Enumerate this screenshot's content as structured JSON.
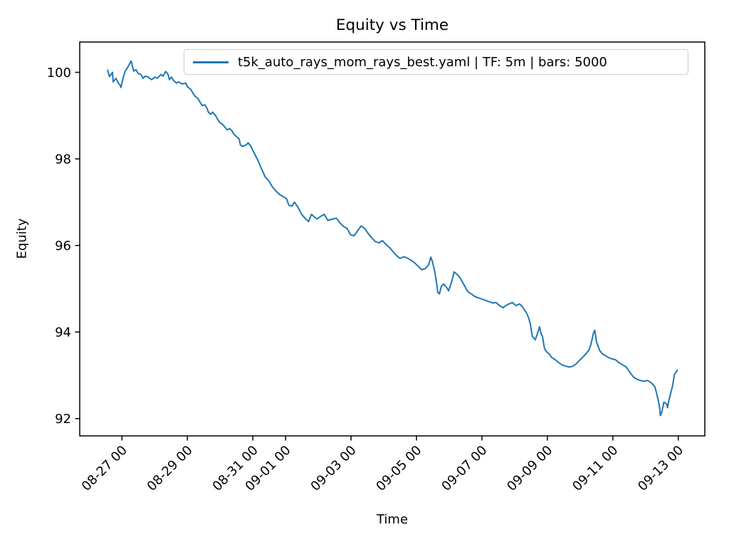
{
  "title": "Equity vs Time",
  "xlabel": "Time",
  "ylabel": "Equity",
  "legend": {
    "label": "t5k_auto_rays_mom_rays_best.yaml | TF: 5m | bars: 5000"
  },
  "chart_data": {
    "type": "line",
    "title": "Equity vs Time",
    "xlabel": "Time",
    "ylabel": "Equity",
    "grid": false,
    "legend_position": "upper center-right",
    "line_color": "#1f77b4",
    "time_unit": "days since 08-25 00:00",
    "x_start": "08-26 ~13:30",
    "x_end": "09-13 00:00",
    "xlim": [
      0.71,
      19.81
    ],
    "ylim": [
      91.6,
      100.7
    ],
    "xticks": [
      {
        "t": 2,
        "label": "08-27 00"
      },
      {
        "t": 4,
        "label": "08-29 00"
      },
      {
        "t": 6,
        "label": "08-31 00"
      },
      {
        "t": 7,
        "label": "09-01 00"
      },
      {
        "t": 9,
        "label": "09-03 00"
      },
      {
        "t": 11,
        "label": "09-05 00"
      },
      {
        "t": 13,
        "label": "09-07 00"
      },
      {
        "t": 15,
        "label": "09-09 00"
      },
      {
        "t": 17,
        "label": "09-11 00"
      },
      {
        "t": 19,
        "label": "09-13 00"
      }
    ],
    "yticks": [
      {
        "v": 92,
        "label": "92"
      },
      {
        "v": 94,
        "label": "94"
      },
      {
        "v": 96,
        "label": "96"
      },
      {
        "v": 98,
        "label": "98"
      },
      {
        "v": 100,
        "label": "100"
      }
    ],
    "series": [
      {
        "name": "t5k_auto_rays_mom_rays_best.yaml | TF: 5m | bars: 5000",
        "color": "#1f77b4",
        "t": [
          1.56,
          1.62,
          1.71,
          1.73,
          1.82,
          1.89,
          1.95,
          1.97,
          2.04,
          2.1,
          2.17,
          2.28,
          2.32,
          2.36,
          2.43,
          2.49,
          2.58,
          2.64,
          2.71,
          2.8,
          2.91,
          3.01,
          3.08,
          3.19,
          3.25,
          3.34,
          3.41,
          3.45,
          3.51,
          3.58,
          3.67,
          3.73,
          3.84,
          3.95,
          4.01,
          4.1,
          4.16,
          4.23,
          4.32,
          4.38,
          4.45,
          4.53,
          4.6,
          4.64,
          4.71,
          4.77,
          4.86,
          4.92,
          4.99,
          5.08,
          5.14,
          5.21,
          5.29,
          5.36,
          5.42,
          5.51,
          5.58,
          5.62,
          5.68,
          5.77,
          5.86,
          5.94,
          6.05,
          6.16,
          6.27,
          6.38,
          6.49,
          6.6,
          6.7,
          6.81,
          6.92,
          7.03,
          7.1,
          7.2,
          7.27,
          7.38,
          7.49,
          7.59,
          7.7,
          7.79,
          7.86,
          7.96,
          8.07,
          8.18,
          8.29,
          8.44,
          8.55,
          8.66,
          8.77,
          8.88,
          8.98,
          9.09,
          9.2,
          9.31,
          9.42,
          9.53,
          9.64,
          9.74,
          9.85,
          9.96,
          10.07,
          10.18,
          10.29,
          10.4,
          10.5,
          10.61,
          10.72,
          10.83,
          10.94,
          11.05,
          11.16,
          11.26,
          11.37,
          11.44,
          11.48,
          11.55,
          11.61,
          11.65,
          11.7,
          11.76,
          11.83,
          11.92,
          11.98,
          12.09,
          12.15,
          12.24,
          12.31,
          12.37,
          12.48,
          12.57,
          12.68,
          12.78,
          12.89,
          13.0,
          13.11,
          13.22,
          13.33,
          13.43,
          13.54,
          13.65,
          13.72,
          13.83,
          13.93,
          14.04,
          14.15,
          14.26,
          14.37,
          14.43,
          14.48,
          14.54,
          14.63,
          14.69,
          14.76,
          14.8,
          14.85,
          14.91,
          14.98,
          15.06,
          15.13,
          15.24,
          15.35,
          15.45,
          15.56,
          15.67,
          15.78,
          15.89,
          16.0,
          16.11,
          16.17,
          16.26,
          16.32,
          16.37,
          16.41,
          16.45,
          16.5,
          16.54,
          16.6,
          16.69,
          16.76,
          16.87,
          16.97,
          17.08,
          17.19,
          17.3,
          17.41,
          17.52,
          17.63,
          17.73,
          17.84,
          17.95,
          18.06,
          18.17,
          18.28,
          18.34,
          18.39,
          18.43,
          18.45,
          18.49,
          18.54,
          18.56,
          18.65,
          18.67,
          18.71,
          18.75,
          18.78,
          18.82,
          18.86,
          18.88,
          18.93,
          18.97
        ],
        "equity": [
          100.05,
          99.9,
          100.0,
          99.78,
          99.86,
          99.75,
          99.7,
          99.65,
          99.88,
          100.03,
          100.11,
          100.26,
          100.14,
          100.03,
          100.06,
          99.98,
          99.95,
          99.86,
          99.91,
          99.89,
          99.83,
          99.89,
          99.86,
          99.95,
          99.91,
          100.02,
          99.95,
          99.83,
          99.89,
          99.81,
          99.75,
          99.78,
          99.73,
          99.75,
          99.66,
          99.61,
          99.53,
          99.45,
          99.4,
          99.32,
          99.23,
          99.25,
          99.17,
          99.08,
          99.03,
          99.08,
          99.0,
          98.92,
          98.84,
          98.79,
          98.74,
          98.67,
          98.7,
          98.65,
          98.57,
          98.51,
          98.46,
          98.32,
          98.29,
          98.31,
          98.37,
          98.29,
          98.12,
          97.96,
          97.76,
          97.58,
          97.49,
          97.35,
          97.26,
          97.18,
          97.13,
          97.08,
          96.93,
          96.91,
          97.0,
          96.88,
          96.72,
          96.63,
          96.55,
          96.72,
          96.67,
          96.61,
          96.67,
          96.72,
          96.58,
          96.61,
          96.63,
          96.52,
          96.44,
          96.39,
          96.25,
          96.22,
          96.34,
          96.45,
          96.39,
          96.27,
          96.17,
          96.09,
          96.06,
          96.11,
          96.02,
          95.95,
          95.85,
          95.76,
          95.7,
          95.74,
          95.71,
          95.66,
          95.6,
          95.52,
          95.44,
          95.46,
          95.55,
          95.73,
          95.64,
          95.43,
          95.15,
          94.92,
          94.88,
          95.06,
          95.11,
          95.03,
          94.95,
          95.2,
          95.39,
          95.33,
          95.28,
          95.2,
          95.05,
          94.93,
          94.88,
          94.82,
          94.79,
          94.76,
          94.73,
          94.7,
          94.67,
          94.68,
          94.61,
          94.56,
          94.61,
          94.65,
          94.68,
          94.61,
          94.65,
          94.56,
          94.43,
          94.32,
          94.18,
          93.9,
          93.82,
          93.95,
          94.12,
          93.98,
          93.9,
          93.62,
          93.54,
          93.49,
          93.41,
          93.36,
          93.29,
          93.24,
          93.21,
          93.19,
          93.21,
          93.27,
          93.36,
          93.44,
          93.49,
          93.57,
          93.69,
          93.85,
          93.98,
          94.04,
          93.78,
          93.69,
          93.57,
          93.49,
          93.46,
          93.41,
          93.38,
          93.36,
          93.29,
          93.24,
          93.19,
          93.07,
          92.96,
          92.91,
          92.88,
          92.86,
          92.88,
          92.83,
          92.74,
          92.58,
          92.41,
          92.25,
          92.07,
          92.13,
          92.3,
          92.38,
          92.33,
          92.25,
          92.41,
          92.53,
          92.63,
          92.74,
          92.91,
          93.02,
          93.07,
          93.12
        ]
      }
    ]
  }
}
